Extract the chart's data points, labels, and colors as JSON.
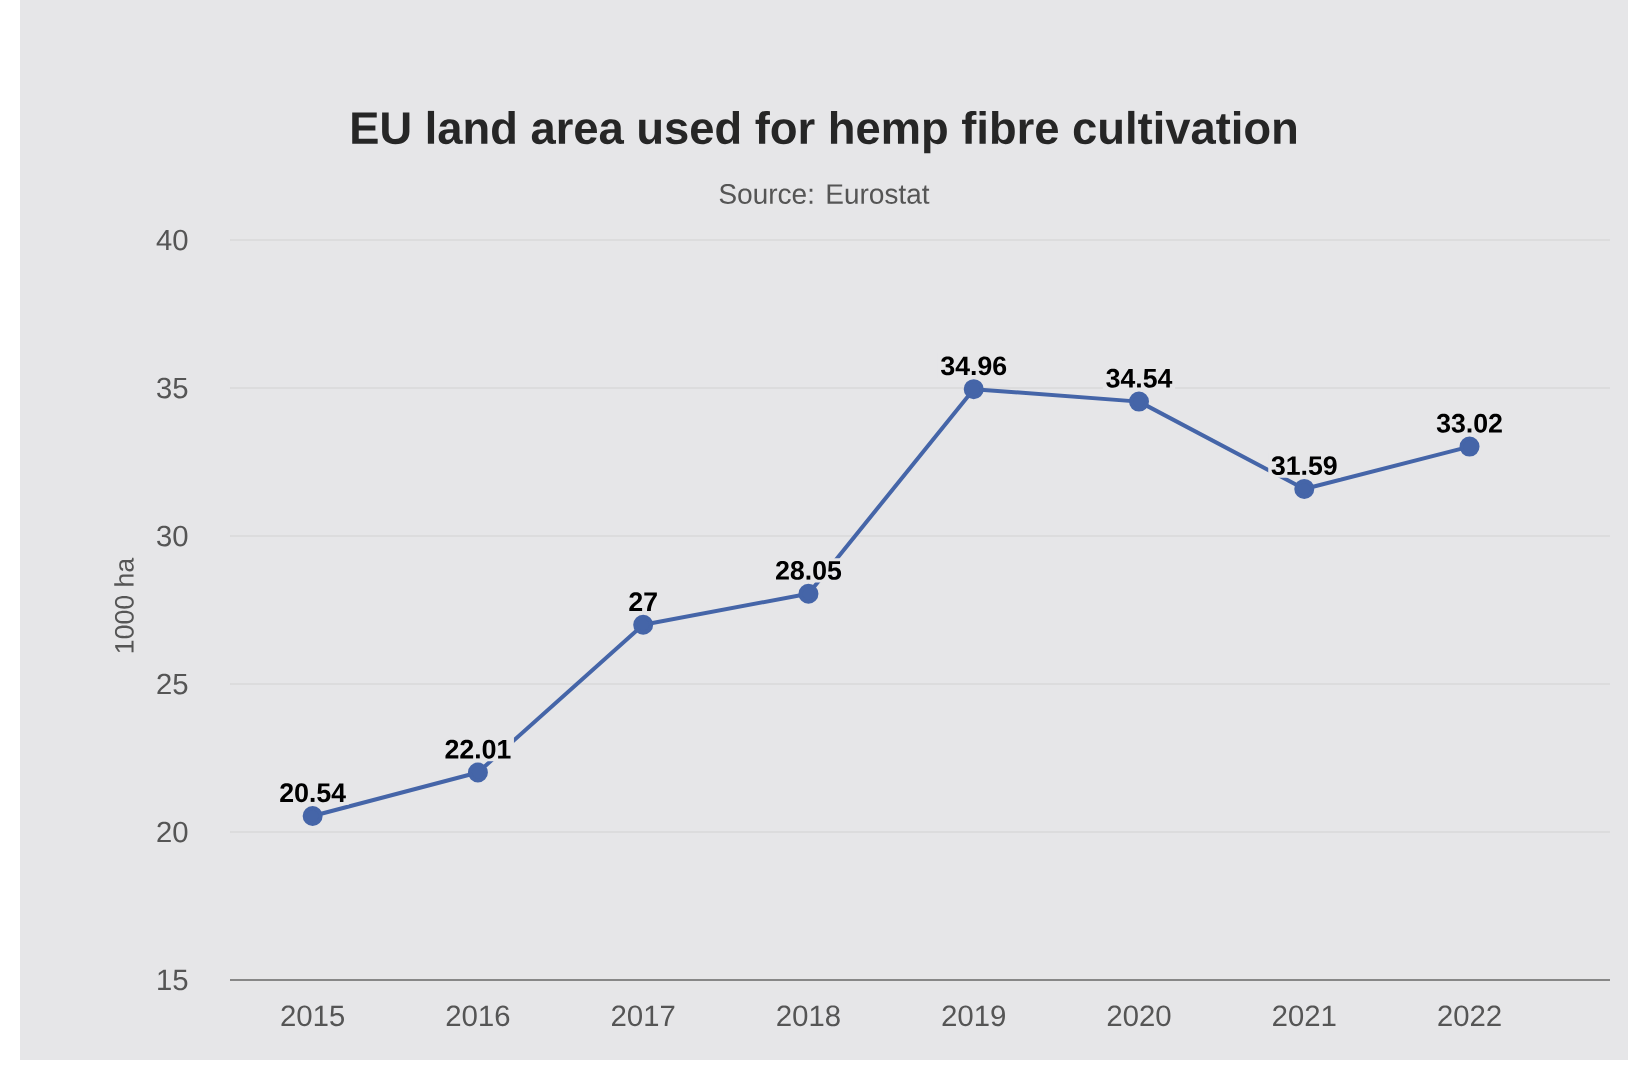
{
  "chart_data": {
    "type": "line",
    "title": "EU land area used for hemp fibre cultivation",
    "subtitle": "Source: Eurostat",
    "ylabel": "1000 ha",
    "categories": [
      "2015",
      "2016",
      "2017",
      "2018",
      "2019",
      "2020",
      "2021",
      "2022"
    ],
    "values": [
      20.54,
      22.01,
      27,
      28.05,
      34.96,
      34.54,
      31.59,
      33.02
    ],
    "color": "#4565a8",
    "ylim": [
      15,
      40
    ],
    "yticks": [
      15,
      20,
      25,
      30,
      35,
      40
    ],
    "grid": "y",
    "marker": "circle",
    "line_style": "solid",
    "data_labels": true
  }
}
